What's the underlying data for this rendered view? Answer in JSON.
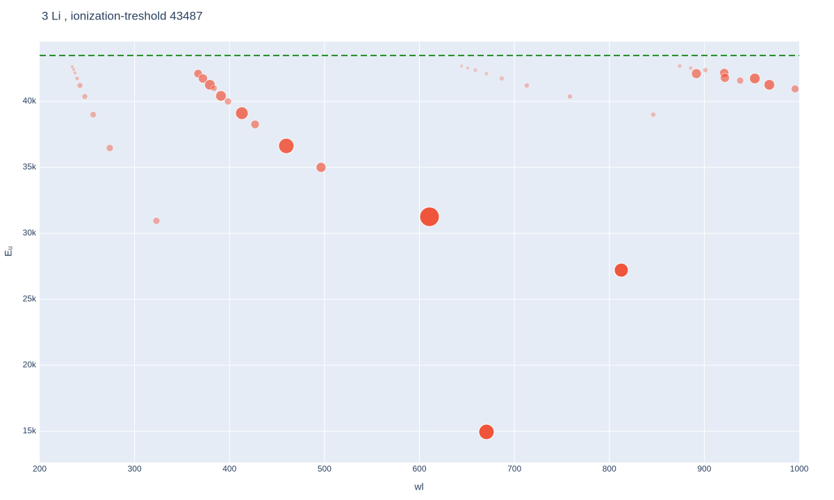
{
  "chart_data": {
    "type": "scatter",
    "title": "3 Li , ionization-treshold 43487",
    "x_label": "wl",
    "y_label": "Eᵤ",
    "color": "#EF553B",
    "x": [
      234.4,
      235.9,
      237.3,
      239.5,
      242.5,
      247.6,
      256.4,
      273.9,
      323.0,
      366.9,
      372.0,
      379.3,
      383.7,
      391.0,
      398.4,
      413.0,
      426.9,
      459.8,
      496.4,
      610.6,
      670.6,
      812.6,
      644.3,
      650.9,
      658.9,
      670.6,
      686.7,
      713.1,
      758.5,
      846.3,
      874.1,
      885.8,
      891.7,
      901.2,
      921.0,
      921.7,
      937.8,
      953.2,
      968.5,
      995.6
    ],
    "y": [
      42630,
      42420,
      42160,
      41740,
      41210,
      40370,
      39000,
      36470,
      30950,
      42110,
      41740,
      41260,
      41000,
      40420,
      40000,
      39110,
      38260,
      36630,
      35000,
      31260,
      14950,
      27210,
      42680,
      42530,
      42370,
      42110,
      41740,
      41210,
      40370,
      39000,
      42680,
      42530,
      42110,
      42370,
      42160,
      41790,
      41580,
      41740,
      41260,
      40950
    ],
    "sizes": [
      5,
      5,
      5,
      6,
      8,
      8,
      9,
      10,
      10,
      12,
      13,
      15,
      9,
      15,
      10,
      18,
      12,
      22,
      14,
      28,
      22,
      20,
      5,
      5,
      6,
      6,
      7,
      7,
      7,
      7,
      6,
      6,
      14,
      7,
      13,
      13,
      10,
      15,
      15,
      11
    ],
    "opacities": [
      0.3,
      0.3,
      0.3,
      0.35,
      0.4,
      0.4,
      0.4,
      0.45,
      0.45,
      0.65,
      0.65,
      0.7,
      0.5,
      0.7,
      0.5,
      0.8,
      0.6,
      0.9,
      0.7,
      1,
      1,
      1,
      0.25,
      0.25,
      0.25,
      0.25,
      0.3,
      0.35,
      0.35,
      0.35,
      0.3,
      0.3,
      0.65,
      0.35,
      0.65,
      0.65,
      0.5,
      0.75,
      0.75,
      0.55
    ],
    "hline_value": 43487,
    "hline_color": "#1f8a1f",
    "xlim": [
      200,
      1000
    ],
    "ylim": [
      12630,
      44530
    ],
    "xticks": [
      200,
      300,
      400,
      500,
      600,
      700,
      800,
      900,
      1000
    ],
    "yticks": [
      {
        "value": 15000,
        "label": "15k"
      },
      {
        "value": 20000,
        "label": "20k"
      },
      {
        "value": 25000,
        "label": "25k"
      },
      {
        "value": 30000,
        "label": "30k"
      },
      {
        "value": 35000,
        "label": "35k"
      },
      {
        "value": 40000,
        "label": "40k"
      }
    ],
    "grid": true
  }
}
